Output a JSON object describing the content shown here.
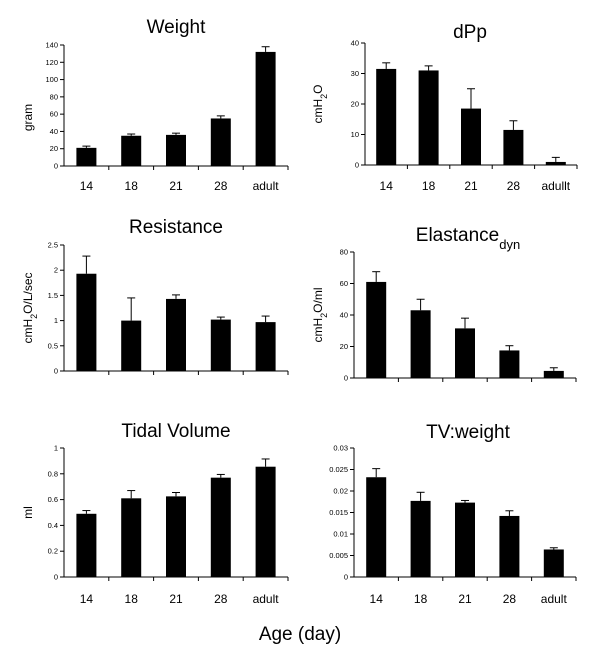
{
  "figure": {
    "xlabel": "Age (day)"
  },
  "chart_data": [
    {
      "type": "bar",
      "title": "Weight",
      "ylabel": "gram",
      "categories": [
        "14",
        "18",
        "21",
        "28",
        "adult"
      ],
      "values": [
        21,
        35,
        36,
        55,
        132
      ],
      "errors": [
        2,
        2,
        2,
        3,
        6
      ],
      "ylim": [
        0,
        140
      ],
      "yticks": [
        "0",
        "20",
        "40",
        "60",
        "80",
        "100",
        "120",
        "140"
      ],
      "grid": false
    },
    {
      "type": "bar",
      "title": "dPp",
      "ylabel": "cmH2O",
      "categories": [
        "14",
        "18",
        "21",
        "28",
        "adullt"
      ],
      "values": [
        31.5,
        31,
        18.5,
        11.5,
        1
      ],
      "errors": [
        2,
        1.5,
        6.5,
        3,
        1.5
      ],
      "ylim": [
        0,
        40
      ],
      "yticks": [
        "0",
        "10",
        "20",
        "30",
        "40"
      ],
      "grid": false
    },
    {
      "type": "bar",
      "title": "Resistance",
      "ylabel": "cmH2O/L/sec",
      "categories": [
        "",
        "",
        "",
        "",
        ""
      ],
      "values": [
        1.93,
        1.0,
        1.43,
        1.02,
        0.97
      ],
      "errors": [
        0.35,
        0.45,
        0.08,
        0.05,
        0.12
      ],
      "ylim": [
        0,
        2.5
      ],
      "yticks": [
        "0",
        "0.5",
        "1",
        "1.5",
        "2",
        "2.5"
      ],
      "grid": false
    },
    {
      "type": "bar",
      "title": "Elastance",
      "title_subscript": "dyn",
      "ylabel": "cmH2O/ml",
      "categories": [
        "",
        "",
        "",
        "",
        ""
      ],
      "values": [
        61,
        43,
        31.5,
        17.5,
        4.5
      ],
      "errors": [
        6.5,
        7,
        6.5,
        3,
        2
      ],
      "ylim": [
        0,
        80
      ],
      "yticks": [
        "0",
        "20",
        "40",
        "60",
        "80"
      ],
      "grid": false
    },
    {
      "type": "bar",
      "title": "Tidal Volume",
      "ylabel": "ml",
      "categories": [
        "14",
        "18",
        "21",
        "28",
        "adult"
      ],
      "values": [
        0.49,
        0.61,
        0.625,
        0.77,
        0.855
      ],
      "errors": [
        0.025,
        0.06,
        0.03,
        0.025,
        0.06
      ],
      "ylim": [
        0,
        1
      ],
      "yticks": [
        "0",
        "0.2",
        "0.4",
        "0.6",
        "0.8",
        "1"
      ],
      "grid": false
    },
    {
      "type": "bar",
      "title": "TV:weight",
      "ylabel": "",
      "categories": [
        "14",
        "18",
        "21",
        "28",
        "adult"
      ],
      "values": [
        0.0232,
        0.0177,
        0.0173,
        0.0142,
        0.0064
      ],
      "errors": [
        0.002,
        0.002,
        0.0005,
        0.0012,
        0.0004
      ],
      "ylim": [
        0,
        0.03
      ],
      "yticks": [
        "0",
        "0.005",
        "0.01",
        "0.015",
        "0.02",
        "0.025",
        "0.03"
      ],
      "grid": false
    }
  ]
}
